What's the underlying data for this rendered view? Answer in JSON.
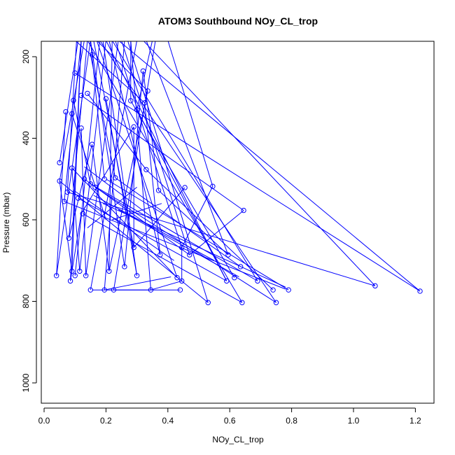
{
  "chart_data": {
    "type": "line",
    "title": "ATOM3 Southbound NOy_CL_trop",
    "xlabel": "NOy_CL_trop",
    "ylabel": "Pressure (mbar)",
    "xlim": [
      0,
      1.25
    ],
    "ylim": [
      1050,
      160
    ],
    "y_reversed": true,
    "x_ticks": [
      "0.0",
      "0.2",
      "0.4",
      "0.6",
      "0.8",
      "1.0",
      "1.2"
    ],
    "y_ticks": [
      "200",
      "400",
      "600",
      "800",
      "1000"
    ],
    "grid": false,
    "legend": "none",
    "series_color": "#0000ff",
    "marker": "open-circle",
    "points": [
      {
        "x": 0.04,
        "y": 737
      },
      {
        "x": 0.05,
        "y": 505
      },
      {
        "x": 0.05,
        "y": 460
      },
      {
        "x": 0.065,
        "y": 555
      },
      {
        "x": 0.07,
        "y": 335
      },
      {
        "x": 0.075,
        "y": 532
      },
      {
        "x": 0.08,
        "y": 645
      },
      {
        "x": 0.085,
        "y": 750
      },
      {
        "x": 0.09,
        "y": 726
      },
      {
        "x": 0.09,
        "y": 473
      },
      {
        "x": 0.09,
        "y": 340
      },
      {
        "x": 0.095,
        "y": 307
      },
      {
        "x": 0.1,
        "y": 737
      },
      {
        "x": 0.1,
        "y": 240
      },
      {
        "x": 0.11,
        "y": 547
      },
      {
        "x": 0.115,
        "y": 726
      },
      {
        "x": 0.12,
        "y": 295
      },
      {
        "x": 0.12,
        "y": 375
      },
      {
        "x": 0.125,
        "y": 585
      },
      {
        "x": 0.13,
        "y": 500
      },
      {
        "x": 0.135,
        "y": 737
      },
      {
        "x": 0.14,
        "y": 290
      },
      {
        "x": 0.15,
        "y": 772
      },
      {
        "x": 0.15,
        "y": 512
      },
      {
        "x": 0.155,
        "y": 415
      },
      {
        "x": 0.155,
        "y": 195
      },
      {
        "x": 0.165,
        "y": 520
      },
      {
        "x": 0.195,
        "y": 772
      },
      {
        "x": 0.195,
        "y": 500
      },
      {
        "x": 0.2,
        "y": 303
      },
      {
        "x": 0.21,
        "y": 726
      },
      {
        "x": 0.225,
        "y": 772
      },
      {
        "x": 0.23,
        "y": 497
      },
      {
        "x": 0.26,
        "y": 715
      },
      {
        "x": 0.28,
        "y": 308
      },
      {
        "x": 0.29,
        "y": 668
      },
      {
        "x": 0.29,
        "y": 372
      },
      {
        "x": 0.3,
        "y": 737
      },
      {
        "x": 0.3,
        "y": 330
      },
      {
        "x": 0.32,
        "y": 235
      },
      {
        "x": 0.325,
        "y": 313
      },
      {
        "x": 0.33,
        "y": 477
      },
      {
        "x": 0.335,
        "y": 284
      },
      {
        "x": 0.345,
        "y": 772
      },
      {
        "x": 0.37,
        "y": 528
      },
      {
        "x": 0.375,
        "y": 686
      },
      {
        "x": 0.43,
        "y": 742
      },
      {
        "x": 0.44,
        "y": 772
      },
      {
        "x": 0.445,
        "y": 750
      },
      {
        "x": 0.445,
        "y": 668
      },
      {
        "x": 0.455,
        "y": 521
      },
      {
        "x": 0.47,
        "y": 686
      },
      {
        "x": 0.53,
        "y": 803
      },
      {
        "x": 0.545,
        "y": 518
      },
      {
        "x": 0.59,
        "y": 750
      },
      {
        "x": 0.595,
        "y": 686
      },
      {
        "x": 0.615,
        "y": 742
      },
      {
        "x": 0.635,
        "y": 715
      },
      {
        "x": 0.64,
        "y": 803
      },
      {
        "x": 0.645,
        "y": 577
      },
      {
        "x": 0.69,
        "y": 750
      },
      {
        "x": 0.74,
        "y": 772
      },
      {
        "x": 0.75,
        "y": 803
      },
      {
        "x": 0.79,
        "y": 772
      },
      {
        "x": 1.07,
        "y": 762
      },
      {
        "x": 1.215,
        "y": 775
      }
    ],
    "segments": [
      [
        0.04,
        737,
        0.15,
        160
      ],
      [
        0.05,
        505,
        0.13,
        160
      ],
      [
        0.05,
        460,
        0.11,
        160
      ],
      [
        0.065,
        555,
        0.12,
        160
      ],
      [
        0.075,
        532,
        0.105,
        160
      ],
      [
        0.08,
        645,
        0.14,
        160
      ],
      [
        0.085,
        750,
        0.12,
        160
      ],
      [
        0.1,
        737,
        0.18,
        160
      ],
      [
        0.115,
        726,
        0.2,
        160
      ],
      [
        0.135,
        737,
        0.24,
        160
      ],
      [
        0.15,
        772,
        0.3,
        160
      ],
      [
        0.195,
        772,
        0.26,
        160
      ],
      [
        0.21,
        726,
        0.22,
        160
      ],
      [
        0.225,
        772,
        0.36,
        160
      ],
      [
        0.26,
        715,
        0.15,
        160
      ],
      [
        0.29,
        668,
        0.16,
        160
      ],
      [
        0.3,
        737,
        0.19,
        160
      ],
      [
        0.345,
        772,
        0.28,
        160
      ],
      [
        0.375,
        686,
        0.21,
        160
      ],
      [
        0.43,
        742,
        0.17,
        160
      ],
      [
        0.445,
        668,
        0.23,
        160
      ],
      [
        0.47,
        686,
        0.25,
        160
      ],
      [
        0.53,
        803,
        0.27,
        160
      ],
      [
        0.59,
        750,
        0.2,
        160
      ],
      [
        0.595,
        686,
        0.33,
        160
      ],
      [
        0.64,
        803,
        0.14,
        160
      ],
      [
        0.69,
        750,
        0.22,
        160
      ],
      [
        0.75,
        803,
        0.18,
        160
      ],
      [
        1.07,
        762,
        0.32,
        160
      ],
      [
        1.215,
        775,
        0.24,
        160
      ],
      [
        0.085,
        750,
        0.12,
        585
      ],
      [
        0.12,
        585,
        0.29,
        372
      ],
      [
        0.195,
        772,
        0.41,
        740
      ],
      [
        0.155,
        772,
        0.345,
        772
      ],
      [
        0.225,
        772,
        0.44,
        772
      ],
      [
        0.345,
        772,
        0.445,
        750
      ],
      [
        0.445,
        750,
        0.445,
        668
      ],
      [
        0.445,
        668,
        0.545,
        518
      ],
      [
        0.13,
        500,
        0.47,
        686
      ],
      [
        0.11,
        547,
        0.59,
        750
      ],
      [
        0.125,
        585,
        0.64,
        803
      ],
      [
        0.15,
        512,
        0.69,
        750
      ],
      [
        0.165,
        520,
        0.75,
        803
      ],
      [
        0.2,
        500,
        0.79,
        772
      ],
      [
        0.23,
        497,
        0.635,
        715
      ],
      [
        0.33,
        477,
        0.74,
        772
      ],
      [
        0.37,
        528,
        0.595,
        686
      ],
      [
        0.455,
        521,
        0.29,
        668
      ],
      [
        0.09,
        473,
        0.43,
        742
      ],
      [
        0.05,
        505,
        0.53,
        803
      ],
      [
        0.065,
        555,
        0.78,
        770
      ],
      [
        0.075,
        532,
        1.07,
        762
      ],
      [
        0.1,
        240,
        1.215,
        775
      ],
      [
        0.12,
        295,
        0.645,
        577
      ],
      [
        0.645,
        577,
        0.47,
        686
      ],
      [
        0.28,
        308,
        0.615,
        742
      ],
      [
        0.3,
        330,
        0.59,
        750
      ],
      [
        0.32,
        235,
        0.37,
        528
      ],
      [
        0.325,
        313,
        0.375,
        686
      ],
      [
        0.29,
        372,
        0.29,
        668
      ],
      [
        0.155,
        415,
        0.21,
        726
      ],
      [
        0.2,
        303,
        0.3,
        737
      ],
      [
        0.09,
        726,
        0.05,
        505
      ],
      [
        0.115,
        726,
        0.09,
        473
      ],
      [
        0.04,
        737,
        0.07,
        335
      ],
      [
        0.135,
        737,
        0.12,
        375
      ],
      [
        0.08,
        645,
        0.155,
        415
      ],
      [
        0.21,
        726,
        0.335,
        284
      ],
      [
        0.26,
        715,
        0.32,
        235
      ],
      [
        0.19,
        560,
        0.78,
        765
      ],
      [
        0.24,
        575,
        0.63,
        740
      ],
      [
        0.16,
        540,
        0.55,
        700
      ],
      [
        0.1,
        530,
        0.42,
        700
      ],
      [
        0.14,
        620,
        0.3,
        520
      ],
      [
        0.22,
        600,
        0.38,
        560
      ],
      [
        0.09,
        340,
        0.2,
        600
      ],
      [
        0.13,
        470,
        0.36,
        600
      ],
      [
        0.15,
        195,
        0.23,
        497
      ],
      [
        0.14,
        290,
        0.33,
        477
      ],
      [
        0.095,
        307,
        0.15,
        512
      ],
      [
        0.17,
        160,
        0.335,
        284
      ],
      [
        0.1,
        160,
        0.325,
        313
      ],
      [
        0.28,
        160,
        0.28,
        308
      ],
      [
        0.35,
        160,
        0.3,
        330
      ],
      [
        0.4,
        160,
        0.545,
        518
      ],
      [
        0.15,
        160,
        0.195,
        500
      ],
      [
        0.12,
        160,
        0.09,
        726
      ]
    ]
  }
}
